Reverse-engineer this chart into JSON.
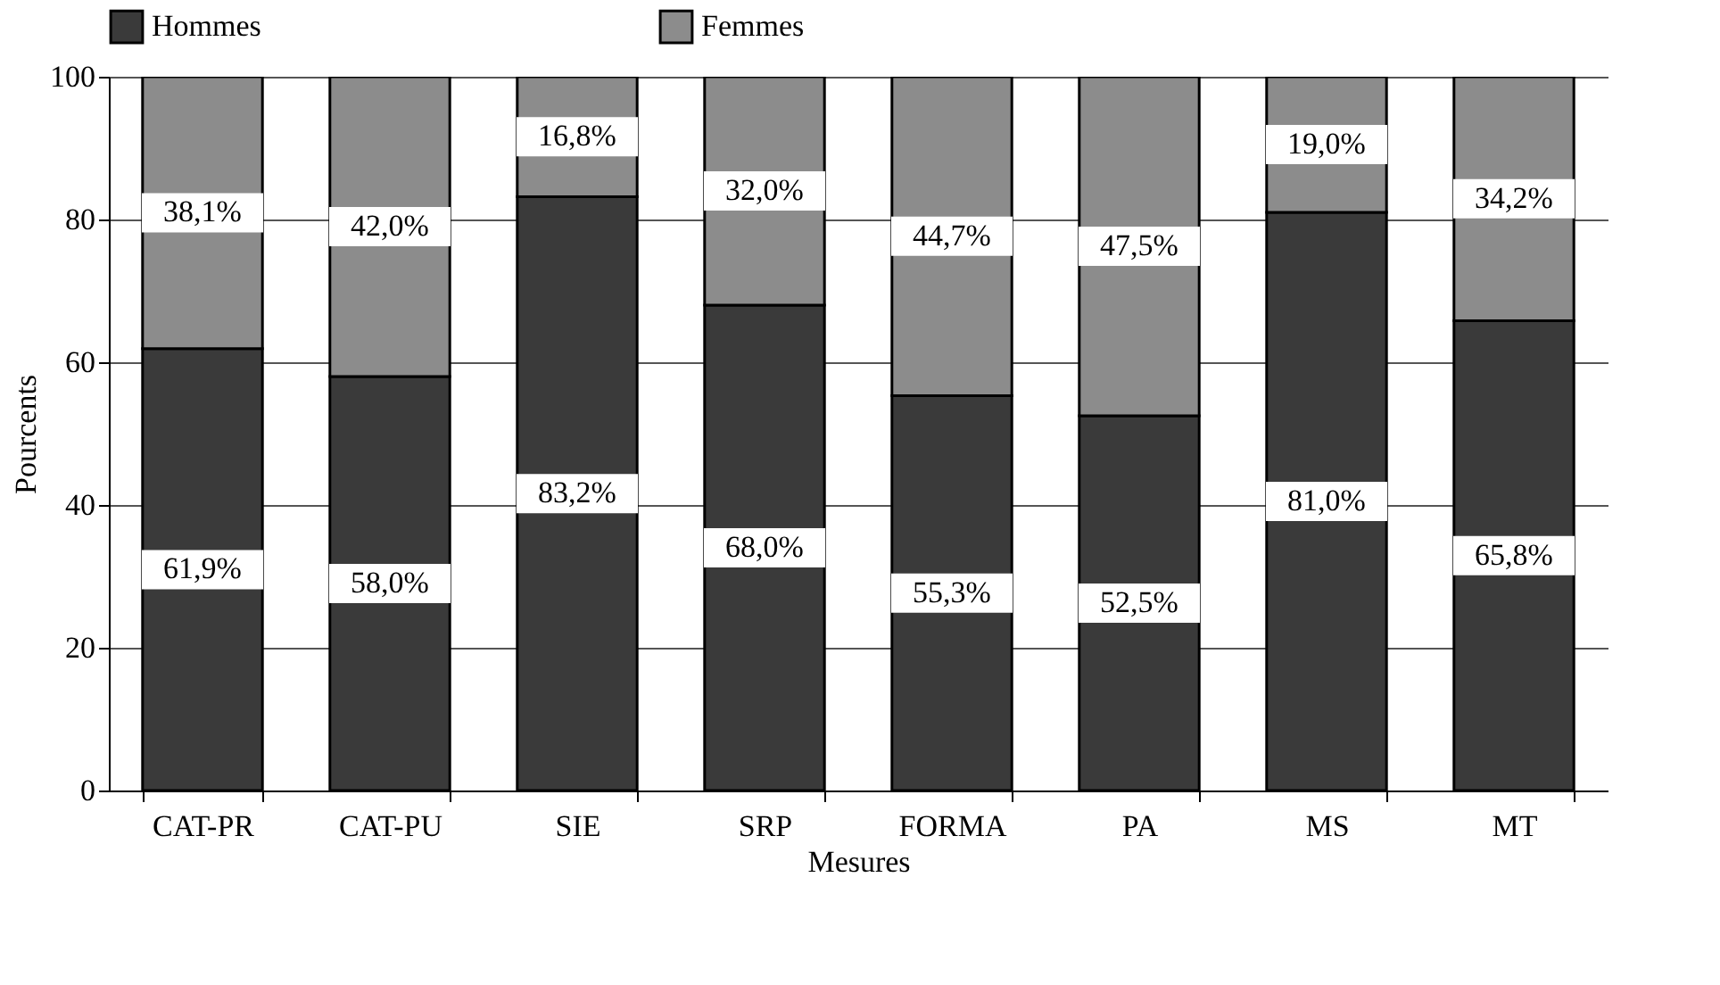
{
  "chart_data": {
    "type": "bar",
    "stacked": true,
    "xlabel": "Mesures",
    "ylabel": "Pourcents",
    "categories": [
      "CAT-PR",
      "CAT-PU",
      "SIE",
      "SRP",
      "FORMA",
      "PA",
      "MS",
      "MT"
    ],
    "series": [
      {
        "name": "Hommes",
        "color": "#3a3a3a",
        "values": [
          61.9,
          58.0,
          83.2,
          68.0,
          55.3,
          52.5,
          81.0,
          65.8
        ],
        "value_labels": [
          "61,9%",
          "58,0%",
          "83,2%",
          "68,0%",
          "55,3%",
          "52,5%",
          "81,0%",
          "65,8%"
        ]
      },
      {
        "name": "Femmes",
        "color": "#8c8c8c",
        "values": [
          38.1,
          42.0,
          16.8,
          32.0,
          44.7,
          47.5,
          19.0,
          34.2
        ],
        "value_labels": [
          "38,1%",
          "42,0%",
          "16,8%",
          "32,0%",
          "44,7%",
          "47,5%",
          "19,0%",
          "34,2%"
        ]
      }
    ],
    "ylim": [
      0,
      100
    ],
    "yticks": [
      0,
      20,
      40,
      60,
      80,
      100
    ],
    "grid": "y",
    "legend": "top"
  }
}
